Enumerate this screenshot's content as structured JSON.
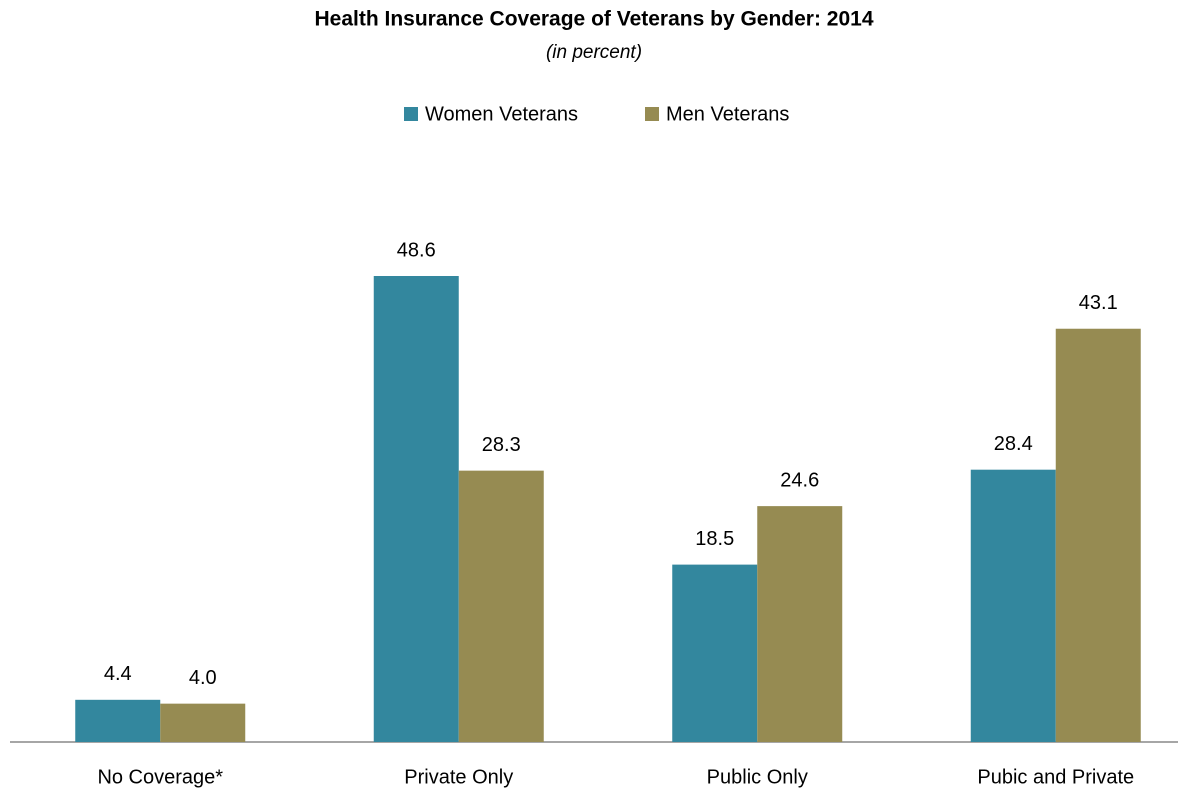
{
  "chart_data": {
    "type": "bar",
    "title": "Health Insurance Coverage of Veterans by Gender:  2014",
    "subtitle": "(in percent)",
    "categories": [
      "No Coverage*",
      "Private Only",
      "Public Only",
      "Pubic and Private"
    ],
    "series": [
      {
        "name": "Women Veterans",
        "color": "#33879e",
        "values": [
          4.4,
          48.6,
          18.5,
          28.4
        ],
        "value_labels": [
          "4.4",
          "48.6",
          "18.5",
          "28.4"
        ]
      },
      {
        "name": "Men Veterans",
        "color": "#968b52",
        "values": [
          4.0,
          28.3,
          24.6,
          43.1
        ],
        "value_labels": [
          "4.0",
          "28.3",
          "24.6",
          "43.1"
        ]
      }
    ],
    "legend": "top"
  }
}
